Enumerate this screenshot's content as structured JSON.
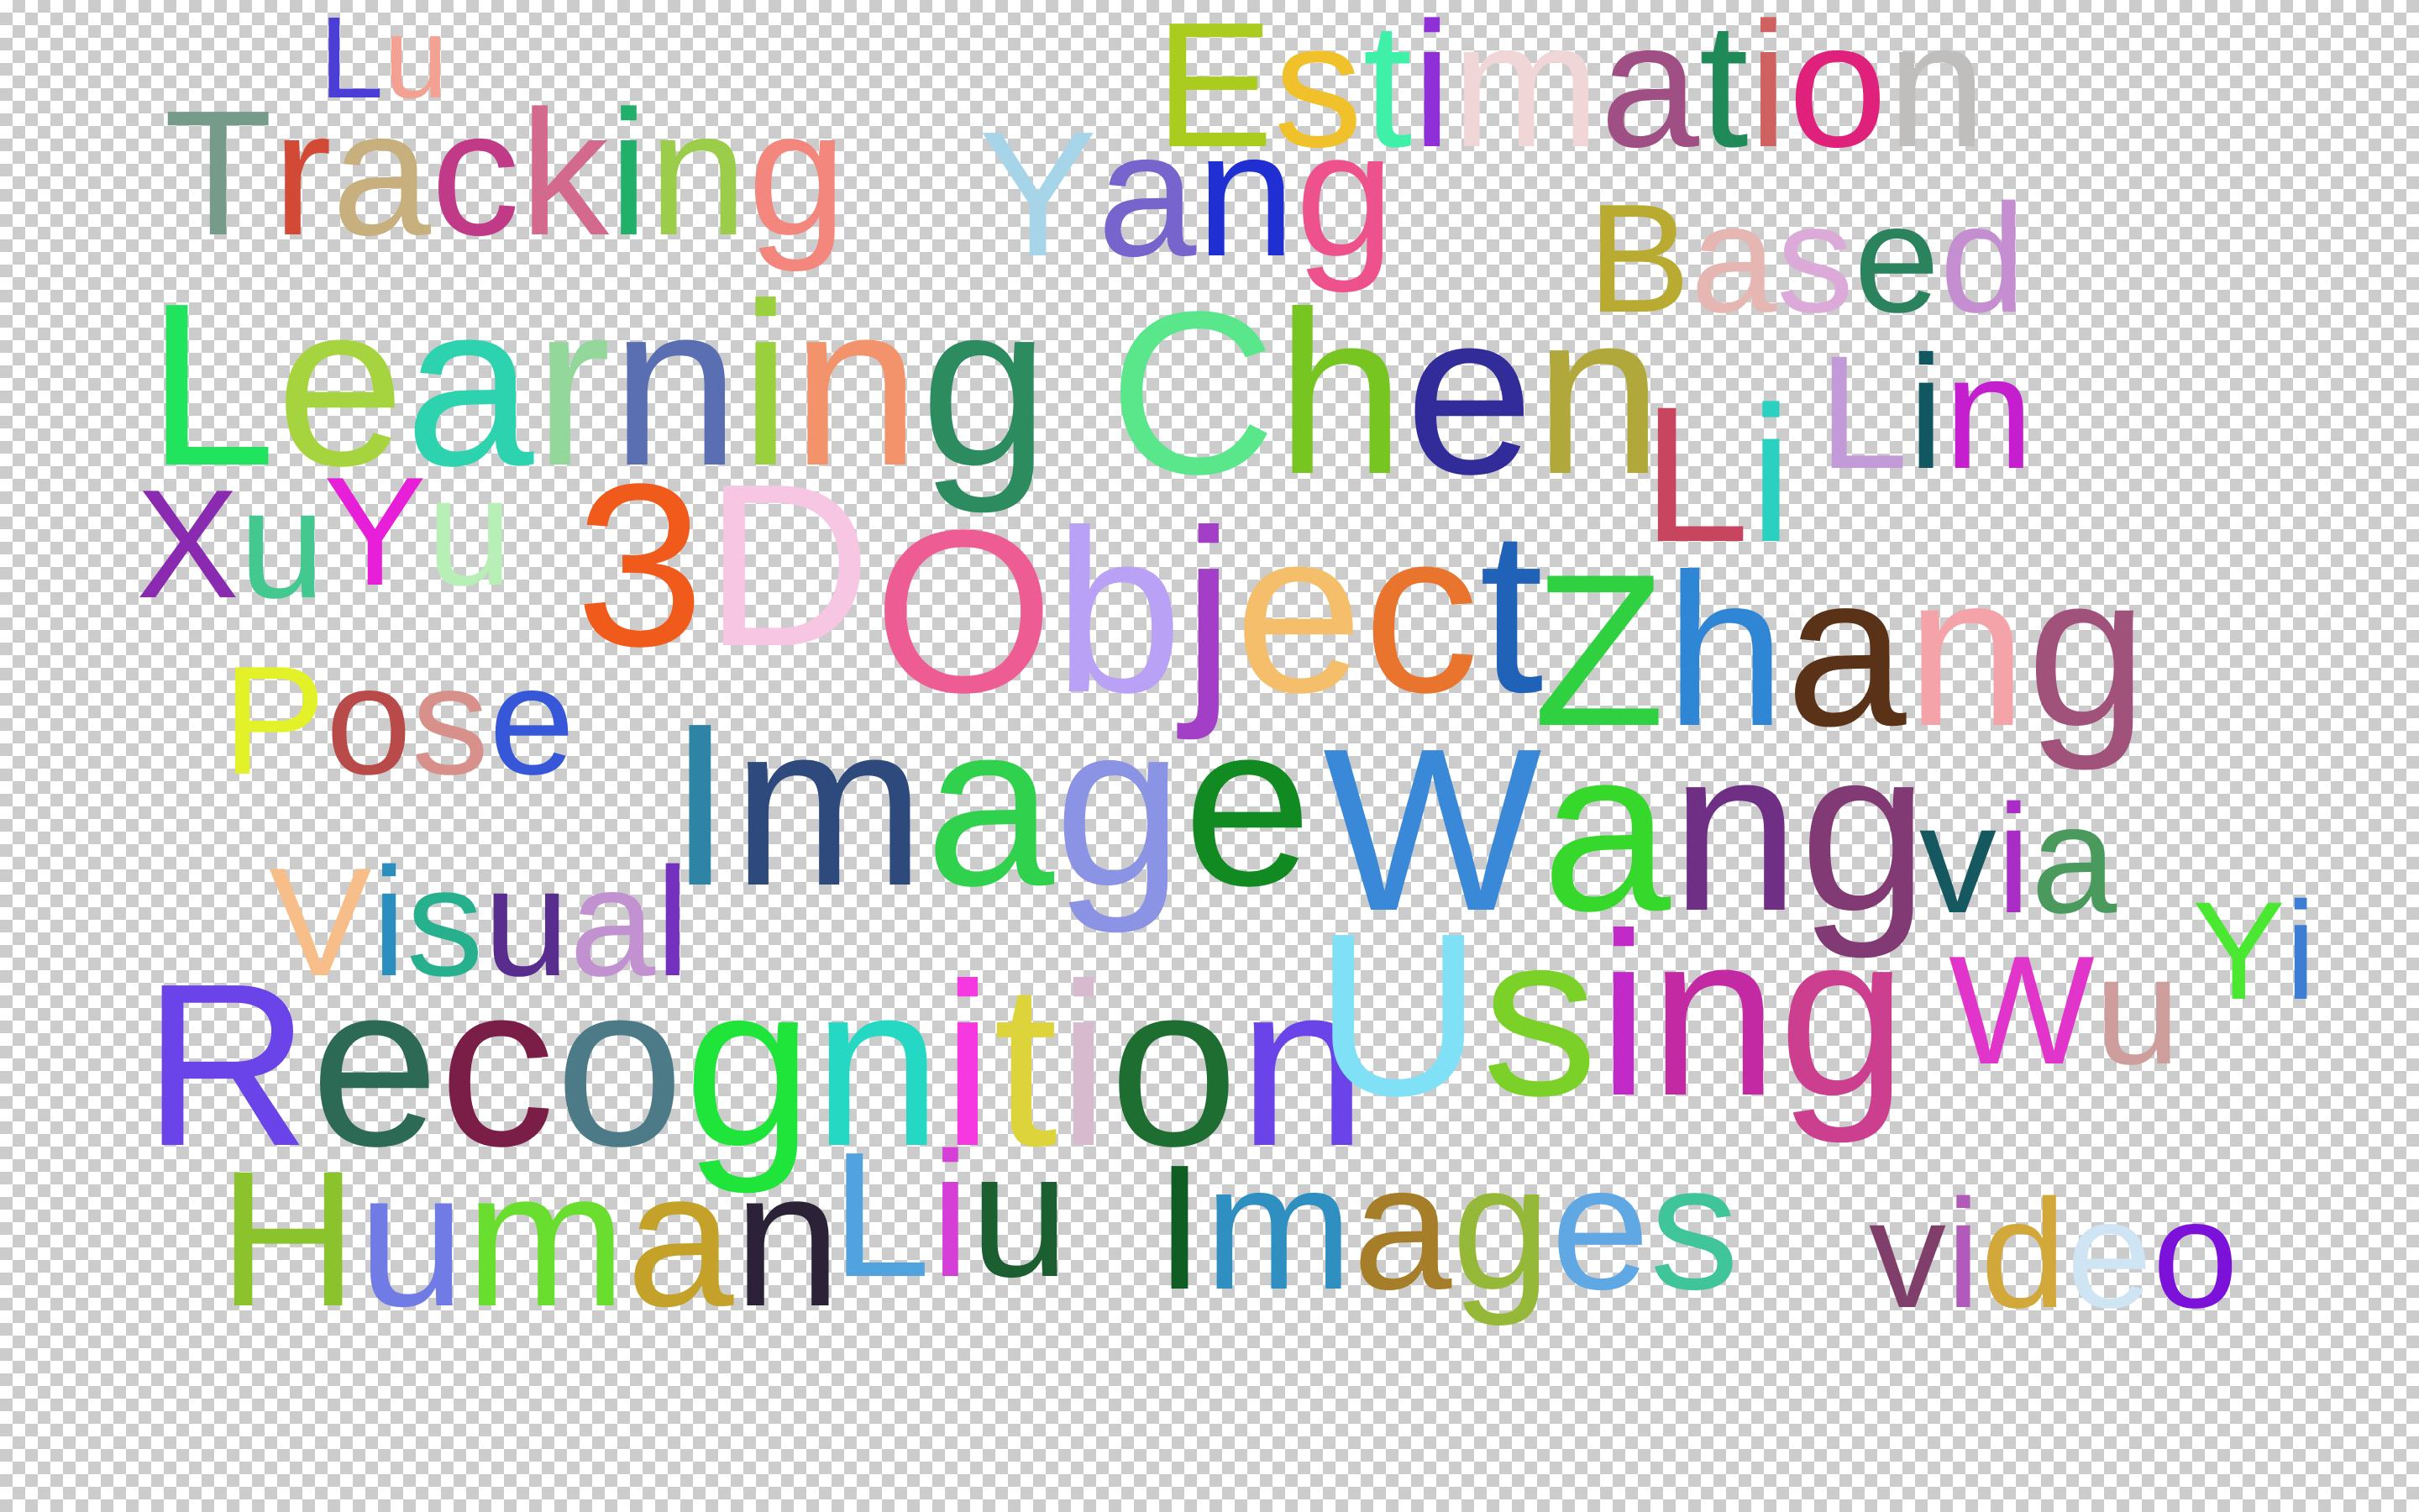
{
  "words": [
    {
      "text": "Lu",
      "colors": [
        "#4a3ed6",
        "#f2a193"
      ]
    },
    {
      "text": "Estimation",
      "colors": [
        "#a9cc1f",
        "#f1c12b",
        "#3ff0a8",
        "#8e2fd8",
        "#f1d6d8",
        "#a04f84",
        "#1f8a58",
        "#cf6260",
        "#e0217c",
        "#c0bdbd",
        "#8c5ed1"
      ]
    },
    {
      "text": "Tracking",
      "colors": [
        "#779b8a",
        "#d24a35",
        "#c8b07e",
        "#c03a88",
        "#d36a8e",
        "#21b06a",
        "#9bcc4a",
        "#f3867d"
      ]
    },
    {
      "text": "Yang",
      "colors": [
        "#a6d5ea",
        "#7764cc",
        "#1f2fd2",
        "#ee528c"
      ]
    },
    {
      "text": "Based",
      "colors": [
        "#b9ab32",
        "#e6b6b3",
        "#dcaad8",
        "#2b835e",
        "#c48ed0"
      ]
    },
    {
      "text": "Learning",
      "colors": [
        "#21e45e",
        "#a6d43f",
        "#2cd3ae",
        "#93d79b",
        "#5a6fb2",
        "#9ad03e",
        "#f2936c",
        "#2c8b5f"
      ]
    },
    {
      "text": "Chen",
      "colors": [
        "#5ae68b",
        "#77c520",
        "#322b9a",
        "#b1a83c"
      ]
    },
    {
      "text": "Li",
      "colors": [
        "#c84560",
        "#2bd1c0"
      ]
    },
    {
      "text": "Lin",
      "colors": [
        "#c39ad8",
        "#115760",
        "#c41ecf"
      ]
    },
    {
      "text": "Xu",
      "colors": [
        "#8a2ab1",
        "#43c88f"
      ]
    },
    {
      "text": "Yu",
      "colors": [
        "#e71fd8",
        "#b7efb7"
      ]
    },
    {
      "text": "3D",
      "colors": [
        "#f05b1c",
        "#f6c6e3"
      ]
    },
    {
      "text": "Object",
      "colors": [
        "#ee5c94",
        "#b9a1f6",
        "#a23fc6",
        "#f4be6b",
        "#e8742e",
        "#1f62b8"
      ]
    },
    {
      "text": "Zhang",
      "colors": [
        "#2fd140",
        "#2f86d4",
        "#5a3218",
        "#f4a3a9",
        "#a0527a"
      ]
    },
    {
      "text": "Pose",
      "colors": [
        "#e3f129",
        "#b84a4a",
        "#d7918a",
        "#3657d8"
      ]
    },
    {
      "text": "Image",
      "colors": [
        "#2e84a4",
        "#2e497c",
        "#30d14c",
        "#8a93e4",
        "#118a22"
      ]
    },
    {
      "text": "Wang",
      "colors": [
        "#3a88d8",
        "#36d82b",
        "#6f2f84",
        "#813a74"
      ]
    },
    {
      "text": "via",
      "colors": [
        "#165860",
        "#a92dc4",
        "#4a9a5e"
      ]
    },
    {
      "text": "Visual",
      "colors": [
        "#f8be8a",
        "#2a8fbe",
        "#26b08d",
        "#582d8d",
        "#c291cf",
        "#7431c0"
      ]
    },
    {
      "text": "Recognition",
      "colors": [
        "#6a43e9",
        "#2d6a55",
        "#7a1e48",
        "#4c7a86",
        "#1fe43a",
        "#24d8c3",
        "#f538e0",
        "#dcd43a",
        "#d7bacd",
        "#1e6d31"
      ]
    },
    {
      "text": "Using",
      "colors": [
        "#80e0f5",
        "#7bd127",
        "#c229c9",
        "#c329a3",
        "#cc3f8e"
      ]
    },
    {
      "text": "Wu",
      "colors": [
        "#e134ca",
        "#cd9e9b"
      ]
    },
    {
      "text": "Yi",
      "colors": [
        "#4ae831",
        "#3b7ed4"
      ]
    },
    {
      "text": "Human",
      "colors": [
        "#8ac32c",
        "#707be6",
        "#69de2f",
        "#c4a229",
        "#2b2238"
      ]
    },
    {
      "text": "Liu",
      "colors": [
        "#51a3df",
        "#d63ed8",
        "#1b5e2f"
      ]
    },
    {
      "text": "Images",
      "colors": [
        "#0f5d23",
        "#2f8fc0",
        "#a67e2a",
        "#96b838",
        "#5fa8e4",
        "#40c49a"
      ]
    },
    {
      "text": "video",
      "colors": [
        "#803e6a",
        "#b15ab9",
        "#d3a83a",
        "#cfe5f4",
        "#7c11da"
      ]
    }
  ]
}
